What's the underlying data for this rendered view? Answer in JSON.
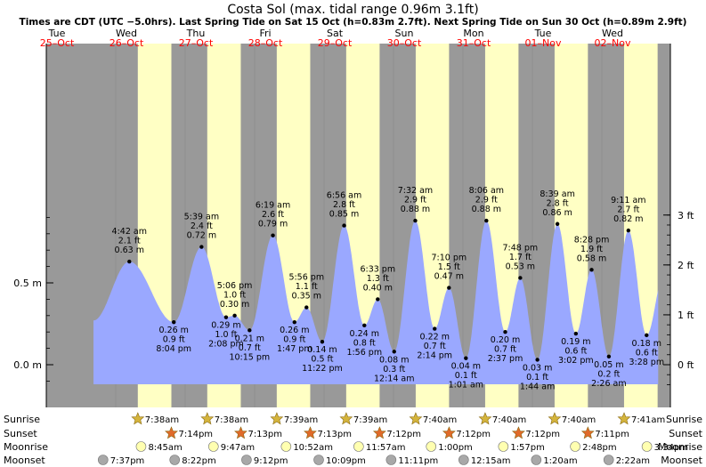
{
  "chart_data": {
    "type": "area",
    "title": "Costa Sol (max. tidal range 0.96m 3.1ft)",
    "subtitle": "Times are CDT (UTC −5.0hrs). Last Spring Tide on Sat 15 Oct (h=0.83m 2.7ft). Next Spring Tide on Sun 30 Oct (h=0.89m 2.9ft)",
    "days": [
      {
        "dow": "Tue",
        "date": "25–Oct"
      },
      {
        "dow": "Wed",
        "date": "26–Oct"
      },
      {
        "dow": "Thu",
        "date": "27–Oct"
      },
      {
        "dow": "Fri",
        "date": "28–Oct"
      },
      {
        "dow": "Sat",
        "date": "29–Oct"
      },
      {
        "dow": "Sun",
        "date": "30–Oct"
      },
      {
        "dow": "Mon",
        "date": "31–Oct"
      },
      {
        "dow": "Tue",
        "date": "01–Nov"
      },
      {
        "dow": "Wed",
        "date": "02–Nov"
      }
    ],
    "left_axis": {
      "unit": "m",
      "ticks": [
        {
          "v": 0,
          "label": "0.0 m"
        },
        {
          "v": 0.5,
          "label": "0.5 m"
        }
      ]
    },
    "right_axis": {
      "unit": "ft",
      "ticks": [
        {
          "v": 0,
          "label": "0 ft"
        },
        {
          "v": 1,
          "label": "1 ft"
        },
        {
          "v": 2,
          "label": "2 ft"
        },
        {
          "v": 3,
          "label": "3 ft"
        }
      ]
    },
    "tides": [
      {
        "type": "high",
        "time": "4:42 am",
        "m": "0.63 m",
        "ft": "2.1 ft",
        "t": 28.7,
        "h": 0.63
      },
      {
        "type": "low",
        "time": "8:04 pm",
        "m": "0.26 m",
        "ft": "0.9 ft",
        "t": 44.07,
        "h": 0.26
      },
      {
        "type": "high",
        "time": "5:39 am",
        "m": "0.72 m",
        "ft": "2.4 ft",
        "t": 53.65,
        "h": 0.72
      },
      {
        "type": "low",
        "time": "2:08 pm",
        "m": "0.29 m",
        "ft": "1.0 ft",
        "t": 62.13,
        "h": 0.29
      },
      {
        "type": "high",
        "time": "5:06 pm",
        "m": "0.30 m",
        "ft": "1.0 ft",
        "t": 65.1,
        "h": 0.3
      },
      {
        "type": "low",
        "time": "10:15 pm",
        "m": "0.21 m",
        "ft": "0.7 ft",
        "t": 70.25,
        "h": 0.21
      },
      {
        "type": "high",
        "time": "6:19 am",
        "m": "0.79 m",
        "ft": "2.6 ft",
        "t": 78.32,
        "h": 0.79
      },
      {
        "type": "low",
        "time": "1:47 pm",
        "m": "0.26 m",
        "ft": "0.9 ft",
        "t": 85.78,
        "h": 0.26
      },
      {
        "type": "high",
        "time": "5:56 pm",
        "m": "0.35 m",
        "ft": "1.1 ft",
        "t": 89.93,
        "h": 0.35
      },
      {
        "type": "low",
        "time": "11:22 pm",
        "m": "0.14 m",
        "ft": "0.5 ft",
        "t": 95.37,
        "h": 0.14
      },
      {
        "type": "high",
        "time": "6:56 am",
        "m": "0.85 m",
        "ft": "2.8 ft",
        "t": 102.93,
        "h": 0.85
      },
      {
        "type": "low",
        "time": "1:56 pm",
        "m": "0.24 m",
        "ft": "0.8 ft",
        "t": 109.93,
        "h": 0.24
      },
      {
        "type": "high",
        "time": "6:33 pm",
        "m": "0.40 m",
        "ft": "1.3 ft",
        "t": 114.55,
        "h": 0.4
      },
      {
        "type": "low",
        "time": "12:14 am",
        "m": "0.08 m",
        "ft": "0.3 ft",
        "t": 120.23,
        "h": 0.08
      },
      {
        "type": "high",
        "time": "7:32 am",
        "m": "0.88 m",
        "ft": "2.9 ft",
        "t": 127.53,
        "h": 0.88
      },
      {
        "type": "low",
        "time": "2:14 pm",
        "m": "0.22 m",
        "ft": "0.7 ft",
        "t": 134.23,
        "h": 0.22
      },
      {
        "type": "high",
        "time": "7:10 pm",
        "m": "0.47 m",
        "ft": "1.5 ft",
        "t": 139.17,
        "h": 0.47
      },
      {
        "type": "low",
        "time": "1:01 am",
        "m": "0.04 m",
        "ft": "0.1 ft",
        "t": 145.02,
        "h": 0.04
      },
      {
        "type": "high",
        "time": "8:06 am",
        "m": "0.88 m",
        "ft": "2.9 ft",
        "t": 152.1,
        "h": 0.88
      },
      {
        "type": "low",
        "time": "2:37 pm",
        "m": "0.20 m",
        "ft": "0.7 ft",
        "t": 158.62,
        "h": 0.2
      },
      {
        "type": "high",
        "time": "7:48 pm",
        "m": "0.53 m",
        "ft": "1.7 ft",
        "t": 163.8,
        "h": 0.53
      },
      {
        "type": "low",
        "time": "1:44 am",
        "m": "0.03 m",
        "ft": "0.1 ft",
        "t": 169.73,
        "h": 0.03
      },
      {
        "type": "high",
        "time": "8:39 am",
        "m": "0.86 m",
        "ft": "2.8 ft",
        "t": 176.65,
        "h": 0.86
      },
      {
        "type": "low",
        "time": "3:02 pm",
        "m": "0.19 m",
        "ft": "0.6 ft",
        "t": 183.03,
        "h": 0.19
      },
      {
        "type": "high",
        "time": "8:28 pm",
        "m": "0.58 m",
        "ft": "1.9 ft",
        "t": 188.47,
        "h": 0.58
      },
      {
        "type": "low",
        "time": "2:26 am",
        "m": "0.05 m",
        "ft": "0.2 ft",
        "t": 194.43,
        "h": 0.05
      },
      {
        "type": "high",
        "time": "9:11 am",
        "m": "0.82 m",
        "ft": "2.7 ft",
        "t": 201.18,
        "h": 0.82
      },
      {
        "type": "low",
        "time": "3:28 pm",
        "m": "0.18 m",
        "ft": "0.6 ft",
        "t": 207.47,
        "h": 0.18
      }
    ],
    "sunrise": [
      {
        "label": "7:38am",
        "t": 31.63
      },
      {
        "label": "7:38am",
        "t": 55.63
      },
      {
        "label": "7:39am",
        "t": 79.65
      },
      {
        "label": "7:39am",
        "t": 103.65
      },
      {
        "label": "7:40am",
        "t": 127.67
      },
      {
        "label": "7:40am",
        "t": 151.67
      },
      {
        "label": "7:40am",
        "t": 175.67
      },
      {
        "label": "7:41am",
        "t": 199.68
      }
    ],
    "sunset": [
      {
        "label": "7:14pm",
        "t": 43.23
      },
      {
        "label": "7:13pm",
        "t": 67.22
      },
      {
        "label": "7:13pm",
        "t": 91.22
      },
      {
        "label": "7:12pm",
        "t": 115.2
      },
      {
        "label": "7:12pm",
        "t": 139.2
      },
      {
        "label": "7:12pm",
        "t": 163.2
      },
      {
        "label": "7:11pm",
        "t": 187.18
      }
    ],
    "moonrise": [
      {
        "label": "8:45am",
        "t": 32.75
      },
      {
        "label": "9:47am",
        "t": 57.78
      },
      {
        "label": "10:52am",
        "t": 82.87
      },
      {
        "label": "11:57am",
        "t": 107.95
      },
      {
        "label": "1:00pm",
        "t": 133.0
      },
      {
        "label": "1:57pm",
        "t": 157.95
      },
      {
        "label": "2:48pm",
        "t": 182.8
      },
      {
        "label": "3:34pm",
        "t": 207.57
      }
    ],
    "moonset": [
      {
        "label": "7:37pm",
        "t": 19.62
      },
      {
        "label": "8:22pm",
        "t": 44.37
      },
      {
        "label": "9:12pm",
        "t": 69.2
      },
      {
        "label": "10:09pm",
        "t": 94.15
      },
      {
        "label": "11:11pm",
        "t": 119.18
      },
      {
        "label": "12:15am",
        "t": 144.25
      },
      {
        "label": "1:20am",
        "t": 169.33
      },
      {
        "label": "2:22am",
        "t": 194.37
      }
    ],
    "row_labels": {
      "sunrise": "Sunrise",
      "sunset": "Sunset",
      "moonrise": "Moonrise",
      "moonset": "Moonset"
    },
    "colors": {
      "water": "#9aa8ff",
      "day": "#ffffc4",
      "night": "#999999",
      "date": "#ff0000",
      "star": "#d4b43c",
      "sunset_star": "#e06a2a",
      "moon": "#ffffb0",
      "moonset": "#a8a8a8"
    }
  }
}
